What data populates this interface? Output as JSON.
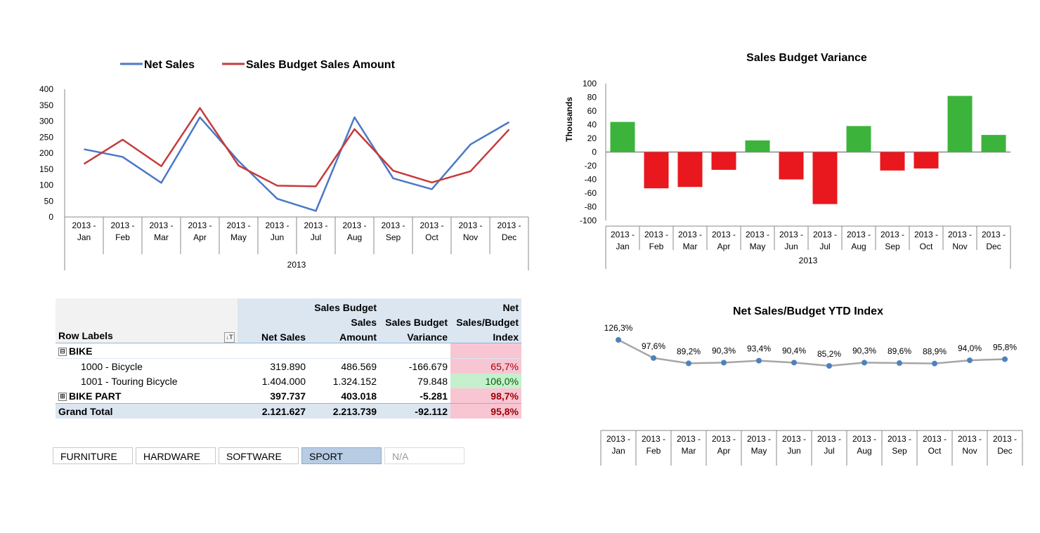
{
  "chart_data": [
    {
      "type": "line",
      "title": "",
      "categories": [
        "Jan",
        "Feb",
        "Mar",
        "Apr",
        "May",
        "Jun",
        "Jul",
        "Aug",
        "Sep",
        "Oct",
        "Nov",
        "Dec"
      ],
      "group_label": "2013",
      "cat_prefix": "2013 -",
      "series": [
        {
          "name": "Net Sales",
          "color": "#4a78c8",
          "values": [
            212,
            188,
            107,
            312,
            175,
            57,
            19,
            312,
            121,
            87,
            227,
            297
          ]
        },
        {
          "name": "Sales Budget Sales Amount",
          "color": "#c63a3a",
          "values": [
            166,
            242,
            159,
            341,
            161,
            98,
            96,
            275,
            145,
            108,
            143,
            274
          ]
        }
      ],
      "ylim": [
        0,
        400
      ],
      "yticks": [
        0,
        50,
        100,
        150,
        200,
        250,
        300,
        350,
        400
      ],
      "legend": "top"
    },
    {
      "type": "bar",
      "title": "Sales Budget Variance",
      "ylabel": "Thousands",
      "categories": [
        "Jan",
        "Feb",
        "Mar",
        "Apr",
        "May",
        "Jun",
        "Jul",
        "Aug",
        "Sep",
        "Oct",
        "Nov",
        "Dec"
      ],
      "group_label": "2013",
      "cat_prefix": "2013 -",
      "values": [
        44,
        -53,
        -51,
        -26,
        17,
        -40,
        -76,
        38,
        -27,
        -24,
        82,
        25
      ],
      "ylim": [
        -100,
        100
      ],
      "yticks": [
        -100,
        -80,
        -60,
        -40,
        -20,
        0,
        20,
        40,
        60,
        80,
        100
      ],
      "pos_color": "#3cb43c",
      "neg_color": "#e8181e"
    },
    {
      "type": "line",
      "title": "Net Sales/Budget YTD Index",
      "categories": [
        "Jan",
        "Feb",
        "Mar",
        "Apr",
        "May",
        "Jun",
        "Jul",
        "Aug",
        "Sep",
        "Oct",
        "Nov",
        "Dec"
      ],
      "cat_prefix": "2013 -",
      "values": [
        126.3,
        97.6,
        89.2,
        90.3,
        93.4,
        90.4,
        85.2,
        90.3,
        89.6,
        88.9,
        94.0,
        95.8
      ],
      "labels": [
        "126,3%",
        "97,6%",
        "89,2%",
        "90,3%",
        "93,4%",
        "90,4%",
        "85,2%",
        "90,3%",
        "89,6%",
        "88,9%",
        "94,0%",
        "95,8%"
      ],
      "line_color": "#a6a6a6",
      "marker_color": "#4f81bd"
    }
  ],
  "pivot": {
    "headers": {
      "row_labels": "Row Labels",
      "filter_icon": "↓T",
      "net_sales": "Net Sales",
      "budget_line1": "Sales Budget",
      "budget_line2": "Sales",
      "budget_line3": "Amount",
      "variance_line2": "Sales Budget",
      "variance_line3": "Variance",
      "index_line1": "Net",
      "index_line2": "Sales/Budget",
      "index_line3": "Index"
    },
    "bike": {
      "toggle": "⊟",
      "label": "BIKE"
    },
    "rows": [
      {
        "label": "1000 - Bicycle",
        "net": "319.890",
        "budget": "486.569",
        "variance": "-166.679",
        "index": "65,7%"
      },
      {
        "label": "1001 - Touring Bicycle",
        "net": "1.404.000",
        "budget": "1.324.152",
        "variance": "79.848",
        "index": "106,0%"
      }
    ],
    "bike_part": {
      "toggle": "⊞",
      "label": "BIKE PART",
      "net": "397.737",
      "budget": "403.018",
      "variance": "-5.281",
      "index": "98,7%"
    },
    "grand_total": {
      "label": "Grand Total",
      "net": "2.121.627",
      "budget": "2.213.739",
      "variance": "-92.112",
      "index": "95,8%"
    }
  },
  "slicer": {
    "items": [
      "FURNITURE",
      "HARDWARE",
      "SOFTWARE",
      "SPORT",
      "N/A"
    ],
    "selected": "SPORT"
  }
}
